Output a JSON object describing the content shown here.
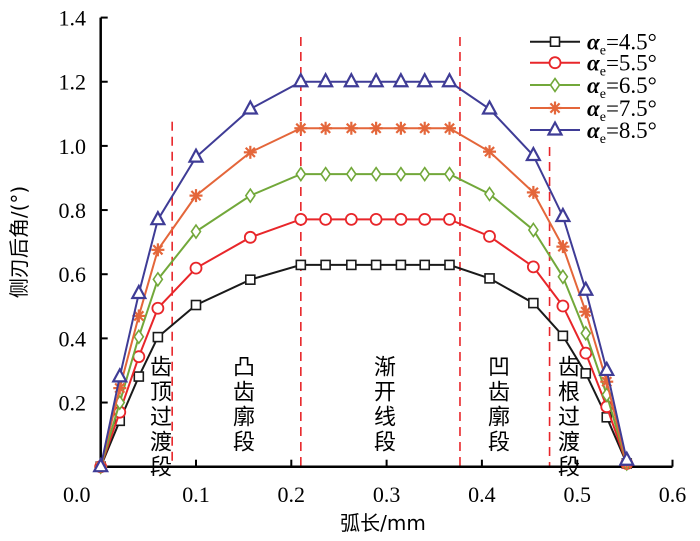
{
  "chart_data": {
    "type": "line",
    "title": "",
    "xlabel": "弧长/mm",
    "ylabel": "侧刃后角/(°)",
    "xlim": [
      0,
      0.6
    ],
    "ylim": [
      0,
      1.4
    ],
    "xticks": [
      "0.0",
      "0.1",
      "0.2",
      "0.3",
      "0.4",
      "0.5",
      "0.6"
    ],
    "yticks": [
      "0.2",
      "0.4",
      "0.6",
      "0.8",
      "1.0",
      "1.2",
      "1.4"
    ],
    "grid": false,
    "legend_position": "top-right",
    "x": [
      0,
      0.02,
      0.04,
      0.06,
      0.1,
      0.157,
      0.21,
      0.236,
      0.263,
      0.289,
      0.315,
      0.34,
      0.366,
      0.408,
      0.454,
      0.485,
      0.509,
      0.531,
      0.552
    ],
    "series": [
      {
        "name": "αe=4.5°",
        "symbol": "α",
        "sub": "e",
        "rest": "=4.5°",
        "color": "#1a1a1a",
        "marker": "square",
        "values": [
          0,
          0.143,
          0.281,
          0.404,
          0.504,
          0.583,
          0.629,
          0.629,
          0.629,
          0.629,
          0.629,
          0.629,
          0.629,
          0.587,
          0.51,
          0.408,
          0.291,
          0.154,
          0.01
        ]
      },
      {
        "name": "αe=5.5°",
        "symbol": "α",
        "sub": "e",
        "rest": "=5.5°",
        "color": "#e8262a",
        "marker": "circle",
        "values": [
          0,
          0.17,
          0.343,
          0.494,
          0.619,
          0.715,
          0.771,
          0.771,
          0.771,
          0.771,
          0.771,
          0.771,
          0.771,
          0.718,
          0.623,
          0.501,
          0.354,
          0.187,
          0.01
        ]
      },
      {
        "name": "αe=6.5°",
        "symbol": "α",
        "sub": "e",
        "rest": "=6.5°",
        "color": "#72a83a",
        "marker": "diamond",
        "values": [
          0,
          0.2,
          0.405,
          0.584,
          0.733,
          0.845,
          0.912,
          0.912,
          0.912,
          0.912,
          0.912,
          0.912,
          0.912,
          0.85,
          0.738,
          0.592,
          0.416,
          0.224,
          0.01
        ]
      },
      {
        "name": "αe=7.5°",
        "symbol": "α",
        "sub": "e",
        "rest": "=7.5°",
        "color": "#e4663a",
        "marker": "asterisk",
        "values": [
          0,
          0.245,
          0.47,
          0.676,
          0.845,
          0.98,
          1.055,
          1.055,
          1.055,
          1.055,
          1.055,
          1.055,
          1.055,
          0.982,
          0.855,
          0.686,
          0.483,
          0.265,
          0.01
        ]
      },
      {
        "name": "αe=8.5°",
        "symbol": "α",
        "sub": "e",
        "rest": "=8.5°",
        "color": "#3f3c96",
        "marker": "triangle",
        "values": [
          0,
          0.28,
          0.54,
          0.77,
          0.965,
          1.115,
          1.2,
          1.2,
          1.2,
          1.2,
          1.2,
          1.2,
          1.2,
          1.115,
          0.97,
          0.78,
          0.55,
          0.3,
          0.02
        ]
      }
    ],
    "divider_color": "#e8262a",
    "dividers": [
      0.075,
      0.21,
      0.377,
      0.471
    ],
    "regions": [
      {
        "label": "齿顶过渡段",
        "x": 0.06
      },
      {
        "label": "凸齿廓段",
        "x": 0.147
      },
      {
        "label": "渐开线段",
        "x": 0.295
      },
      {
        "label": "凹齿廓段",
        "x": 0.415
      },
      {
        "label": "齿根过渡段",
        "x": 0.488
      }
    ]
  }
}
